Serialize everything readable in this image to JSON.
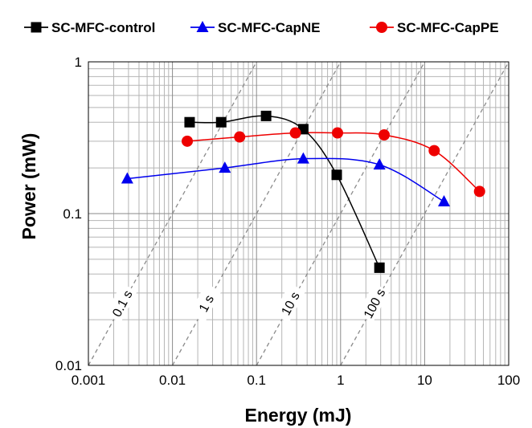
{
  "chart_data": {
    "type": "scatter",
    "xlabel": "Energy (mJ)",
    "ylabel": "Power (mW)",
    "x_scale": "log",
    "y_scale": "log",
    "xlim": [
      0.001,
      100
    ],
    "ylim": [
      0.01,
      1
    ],
    "x_ticks": [
      {
        "value": 0.001,
        "label": "0.001"
      },
      {
        "value": 0.01,
        "label": "0.01"
      },
      {
        "value": 0.1,
        "label": "0.1"
      },
      {
        "value": 1,
        "label": "1"
      },
      {
        "value": 10,
        "label": "10"
      },
      {
        "value": 100,
        "label": "100"
      }
    ],
    "y_ticks": [
      {
        "value": 0.01,
        "label": "0.01"
      },
      {
        "value": 0.1,
        "label": "0.1"
      },
      {
        "value": 1,
        "label": "1"
      }
    ],
    "grid": true,
    "legend_position": "top",
    "series": [
      {
        "name": "SC-MFC-control",
        "color": "#000000",
        "marker": "square",
        "points": [
          {
            "x": 0.016,
            "y": 0.4
          },
          {
            "x": 0.038,
            "y": 0.4
          },
          {
            "x": 0.13,
            "y": 0.44
          },
          {
            "x": 0.36,
            "y": 0.36
          },
          {
            "x": 0.9,
            "y": 0.18
          },
          {
            "x": 2.9,
            "y": 0.044
          }
        ]
      },
      {
        "name": "SC-MFC-CapNE",
        "color": "#0000ee",
        "marker": "triangle",
        "points": [
          {
            "x": 0.0029,
            "y": 0.17
          },
          {
            "x": 0.042,
            "y": 0.2
          },
          {
            "x": 0.36,
            "y": 0.23
          },
          {
            "x": 2.9,
            "y": 0.21
          },
          {
            "x": 17,
            "y": 0.12
          }
        ]
      },
      {
        "name": "SC-MFC-CapPE",
        "color": "#ee0000",
        "marker": "circle",
        "points": [
          {
            "x": 0.015,
            "y": 0.3
          },
          {
            "x": 0.063,
            "y": 0.32
          },
          {
            "x": 0.29,
            "y": 0.34
          },
          {
            "x": 0.92,
            "y": 0.34
          },
          {
            "x": 3.3,
            "y": 0.33
          },
          {
            "x": 13,
            "y": 0.26
          },
          {
            "x": 45,
            "y": 0.14
          }
        ]
      }
    ],
    "iso_time_lines": [
      {
        "seconds": 0.1,
        "label": "0.1 s"
      },
      {
        "seconds": 1,
        "label": "1 s"
      },
      {
        "seconds": 10,
        "label": "10 s"
      },
      {
        "seconds": 100,
        "label": "100 s"
      }
    ]
  }
}
